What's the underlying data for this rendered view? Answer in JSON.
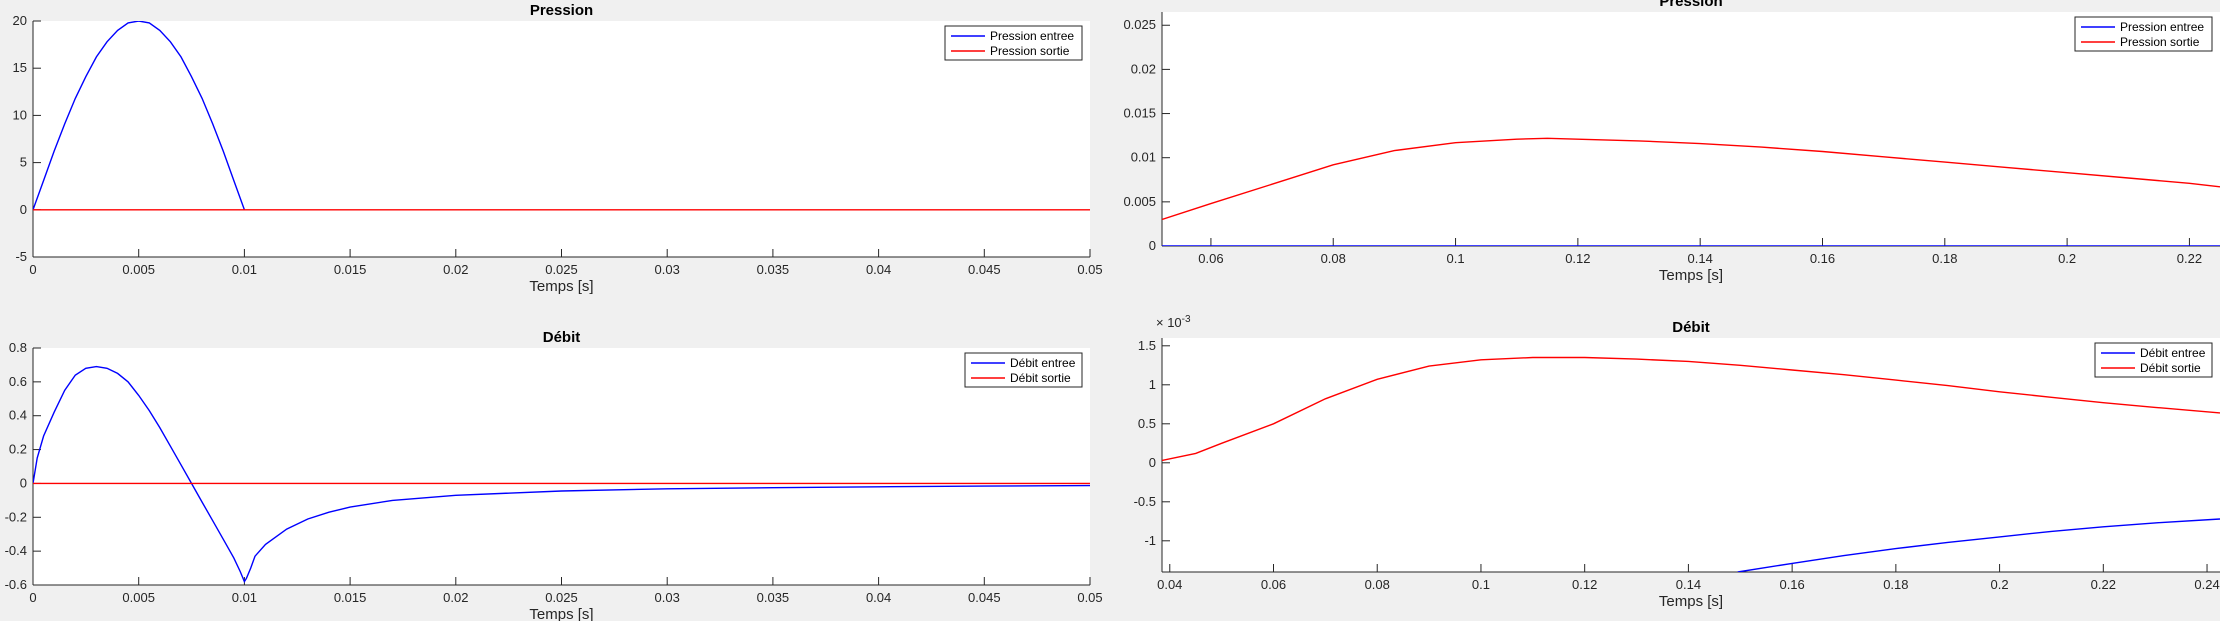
{
  "chart_data": [
    {
      "type": "line",
      "title": "Pression",
      "xlabel": "Temps [s]",
      "ylabel": "",
      "xlim": [
        0,
        0.05
      ],
      "ylim": [
        -5,
        20
      ],
      "xticks": [
        0,
        0.005,
        0.01,
        0.015,
        0.02,
        0.025,
        0.03,
        0.035,
        0.04,
        0.045,
        0.05
      ],
      "xtick_labels": [
        "0",
        "0.005",
        "0.01",
        "0.015",
        "0.02",
        "0.025",
        "0.03",
        "0.035",
        "0.04",
        "0.045",
        "0.05"
      ],
      "yticks": [
        -5,
        0,
        5,
        10,
        15,
        20
      ],
      "ytick_labels": [
        "-5",
        "0",
        "5",
        "10",
        "15",
        "20"
      ],
      "legend_position": "top-right",
      "series": [
        {
          "name": "Pression entree",
          "color": "#0000ff",
          "x": [
            0,
            0.0005,
            0.001,
            0.0015,
            0.002,
            0.0025,
            0.003,
            0.0035,
            0.004,
            0.0045,
            0.005,
            0.0055,
            0.006,
            0.0065,
            0.007,
            0.0075,
            0.008,
            0.0085,
            0.009,
            0.0095,
            0.01
          ],
          "y": [
            0,
            3.1,
            6.2,
            9.1,
            11.8,
            14.1,
            16.2,
            17.8,
            19.0,
            19.8,
            20.0,
            19.8,
            19.0,
            17.8,
            16.2,
            14.1,
            11.8,
            9.1,
            6.2,
            3.1,
            0
          ]
        },
        {
          "name": "Pression sortie",
          "color": "#ff0000",
          "x": [
            0,
            0.05
          ],
          "y": [
            0,
            0
          ]
        }
      ]
    },
    {
      "type": "line",
      "title": "Pression",
      "xlabel": "Temps [s]",
      "ylabel": "",
      "xlim": [
        0.052,
        0.225
      ],
      "ylim": [
        0,
        0.0265
      ],
      "xticks": [
        0.06,
        0.08,
        0.1,
        0.12,
        0.14,
        0.16,
        0.18,
        0.2,
        0.22
      ],
      "xtick_labels": [
        "0.06",
        "0.08",
        "0.1",
        "0.12",
        "0.14",
        "0.16",
        "0.18",
        "0.2",
        "0.22"
      ],
      "yticks": [
        0,
        0.005,
        0.01,
        0.015,
        0.02,
        0.025
      ],
      "ytick_labels": [
        "0",
        "0.005",
        "0.01",
        "0.015",
        "0.02",
        "0.025"
      ],
      "legend_position": "top-right",
      "series": [
        {
          "name": "Pression entree",
          "color": "#0000ff",
          "x": [
            0.052,
            0.225
          ],
          "y": [
            0,
            0
          ]
        },
        {
          "name": "Pression sortie",
          "color": "#ff0000",
          "x": [
            0.052,
            0.06,
            0.07,
            0.08,
            0.09,
            0.1,
            0.11,
            0.115,
            0.12,
            0.13,
            0.14,
            0.15,
            0.16,
            0.17,
            0.18,
            0.19,
            0.2,
            0.21,
            0.22,
            0.225
          ],
          "y": [
            0.003,
            0.0048,
            0.007,
            0.0092,
            0.0108,
            0.0117,
            0.0121,
            0.0122,
            0.0121,
            0.0119,
            0.0116,
            0.0112,
            0.0107,
            0.0101,
            0.0095,
            0.0089,
            0.0083,
            0.0077,
            0.0071,
            0.0067
          ]
        }
      ]
    },
    {
      "type": "line",
      "title": "Débit",
      "xlabel": "Temps [s]",
      "ylabel": "",
      "xlim": [
        0,
        0.05
      ],
      "ylim": [
        -0.6,
        0.8
      ],
      "xticks": [
        0,
        0.005,
        0.01,
        0.015,
        0.02,
        0.025,
        0.03,
        0.035,
        0.04,
        0.045,
        0.05
      ],
      "xtick_labels": [
        "0",
        "0.005",
        "0.01",
        "0.015",
        "0.02",
        "0.025",
        "0.03",
        "0.035",
        "0.04",
        "0.045",
        "0.05"
      ],
      "yticks": [
        -0.6,
        -0.4,
        -0.2,
        0,
        0.2,
        0.4,
        0.6,
        0.8
      ],
      "ytick_labels": [
        "-0.6",
        "-0.4",
        "-0.2",
        "0",
        "0.2",
        "0.4",
        "0.6",
        "0.8"
      ],
      "legend_position": "top-right",
      "series": [
        {
          "name": "Débit entree",
          "color": "#0000ff",
          "x": [
            0,
            0.0002,
            0.0005,
            0.001,
            0.0015,
            0.002,
            0.0025,
            0.003,
            0.0035,
            0.004,
            0.0045,
            0.005,
            0.0055,
            0.006,
            0.0065,
            0.007,
            0.0075,
            0.008,
            0.0085,
            0.009,
            0.0095,
            0.0098,
            0.01,
            0.0101,
            0.0103,
            0.0105,
            0.011,
            0.012,
            0.013,
            0.014,
            0.015,
            0.017,
            0.02,
            0.025,
            0.03,
            0.035,
            0.04,
            0.045,
            0.05
          ],
          "y": [
            0,
            0.15,
            0.28,
            0.42,
            0.55,
            0.64,
            0.68,
            0.69,
            0.68,
            0.65,
            0.6,
            0.52,
            0.43,
            0.33,
            0.22,
            0.11,
            0.0,
            -0.11,
            -0.22,
            -0.33,
            -0.44,
            -0.52,
            -0.58,
            -0.56,
            -0.5,
            -0.43,
            -0.36,
            -0.27,
            -0.21,
            -0.17,
            -0.14,
            -0.1,
            -0.07,
            -0.045,
            -0.032,
            -0.025,
            -0.02,
            -0.016,
            -0.013
          ]
        },
        {
          "name": "Débit sortie",
          "color": "#ff0000",
          "x": [
            0,
            0.05
          ],
          "y": [
            0,
            0
          ]
        }
      ]
    },
    {
      "type": "line",
      "title": "Débit",
      "xlabel": "Temps [s]",
      "ylabel": "",
      "axis_multiplier": "× 10",
      "axis_multiplier_exponent": "-3",
      "xlim": [
        0.0385,
        0.2425
      ],
      "ylim": [
        -1.4,
        1.6
      ],
      "xticks": [
        0.04,
        0.06,
        0.08,
        0.1,
        0.12,
        0.14,
        0.16,
        0.18,
        0.2,
        0.22,
        0.24
      ],
      "xtick_labels": [
        "0.04",
        "0.06",
        "0.08",
        "0.1",
        "0.12",
        "0.14",
        "0.16",
        "0.18",
        "0.2",
        "0.22",
        "0.24"
      ],
      "yticks": [
        -1,
        -0.5,
        0,
        0.5,
        1,
        1.5
      ],
      "ytick_labels": [
        "-1",
        "-0.5",
        "0",
        "0.5",
        "1",
        "1.5"
      ],
      "legend_position": "top-right",
      "series": [
        {
          "name": "Débit entree",
          "color": "#0000ff",
          "x": [
            0.1495,
            0.16,
            0.17,
            0.18,
            0.19,
            0.2,
            0.21,
            0.22,
            0.23,
            0.2425
          ],
          "y": [
            -1.4,
            -1.29,
            -1.19,
            -1.1,
            -1.02,
            -0.95,
            -0.88,
            -0.82,
            -0.77,
            -0.72
          ]
        },
        {
          "name": "Débit sortie",
          "color": "#ff0000",
          "x": [
            0.0385,
            0.045,
            0.05,
            0.06,
            0.07,
            0.08,
            0.09,
            0.1,
            0.11,
            0.12,
            0.13,
            0.14,
            0.15,
            0.16,
            0.17,
            0.18,
            0.19,
            0.2,
            0.21,
            0.22,
            0.23,
            0.2425
          ],
          "y": [
            0.03,
            0.12,
            0.25,
            0.5,
            0.82,
            1.07,
            1.24,
            1.32,
            1.35,
            1.35,
            1.33,
            1.3,
            1.25,
            1.19,
            1.13,
            1.06,
            0.99,
            0.91,
            0.84,
            0.77,
            0.71,
            0.64
          ]
        }
      ]
    }
  ]
}
